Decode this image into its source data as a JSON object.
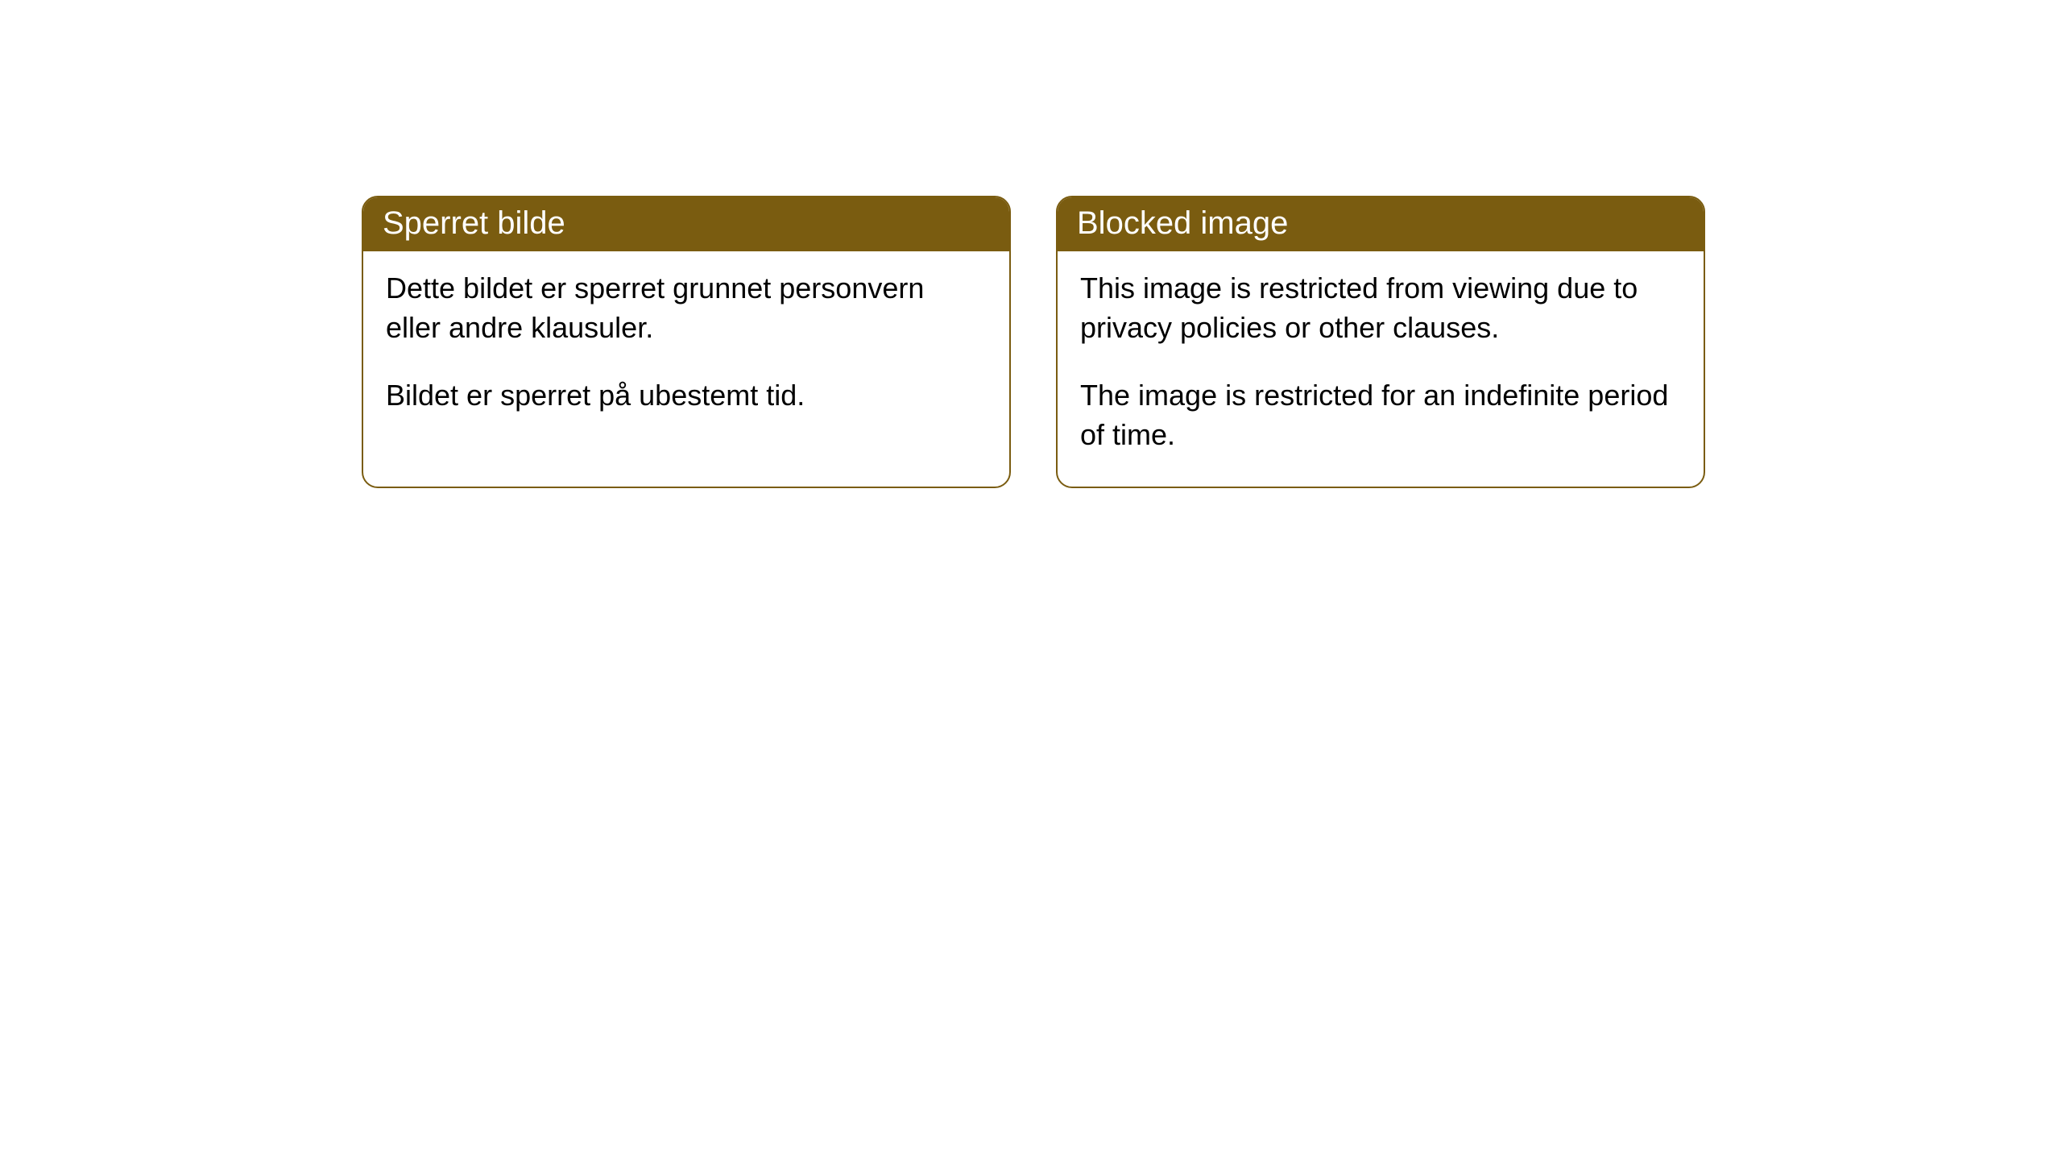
{
  "cards": [
    {
      "title": "Sperret bilde",
      "paragraph1": "Dette bildet er sperret grunnet personvern eller andre klausuler.",
      "paragraph2": "Bildet er sperret på ubestemt tid."
    },
    {
      "title": "Blocked image",
      "paragraph1": "This image is restricted from viewing due to privacy policies or other clauses.",
      "paragraph2": "The image is restricted for an indefinite period of time."
    }
  ],
  "style": {
    "header_bg": "#7a5c10",
    "header_text": "#ffffff",
    "border_color": "#7a5c10",
    "card_bg": "#ffffff",
    "body_text": "#000000",
    "border_radius": 20,
    "title_fontsize": 40,
    "body_fontsize": 36
  }
}
